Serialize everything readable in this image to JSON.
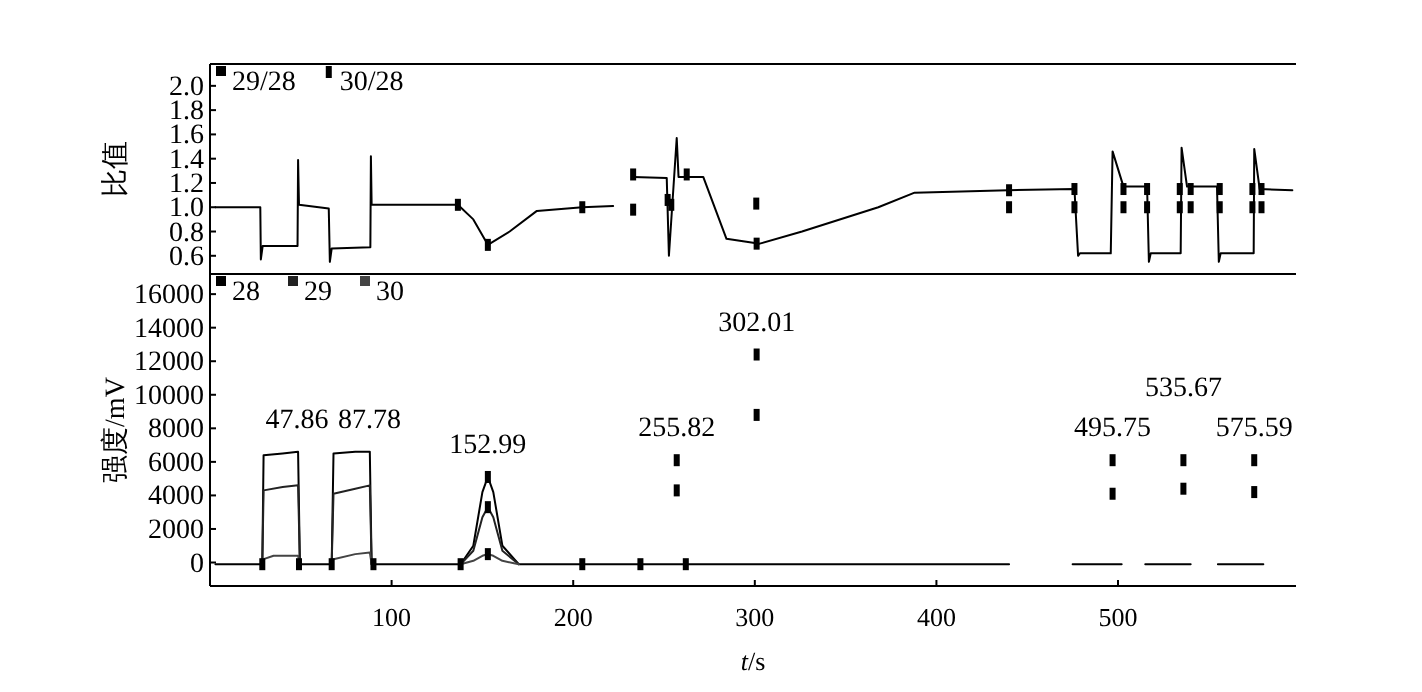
{
  "chart_data": [
    {
      "type": "line",
      "ylabel": "比值",
      "xlim": [
        0,
        598
      ],
      "ylim": [
        0.45,
        2.18
      ],
      "yticks": [
        {
          "value": 0.6,
          "label": "0.6"
        },
        {
          "value": 0.8,
          "label": "0.8"
        },
        {
          "value": 1.0,
          "label": "1.0"
        },
        {
          "value": 1.2,
          "label": "1.2"
        },
        {
          "value": 1.4,
          "label": "1.4"
        },
        {
          "value": 1.6,
          "label": "1.6"
        },
        {
          "value": 1.8,
          "label": "1.8"
        },
        {
          "value": 2.0,
          "label": "2.0"
        }
      ],
      "tick_labels": "y",
      "legend": "top left",
      "series": [
        {
          "name": "29/28",
          "color": "#000000",
          "x": [
            3,
            27.7,
            28,
            29,
            48.2,
            48.5,
            49,
            65.4,
            66,
            67,
            88.3,
            88.6,
            89,
            136.5,
            145,
            153,
            165,
            180,
            205,
            222,
            227,
            233,
            251.5,
            252.7,
            257,
            258,
            271.6,
            284.4,
            302.7,
            326,
            368,
            388,
            439.5,
            476,
            478,
            479,
            496,
            497,
            503,
            516,
            517,
            518,
            534.5,
            535,
            538,
            554.5,
            555.5,
            556.5,
            574.7,
            575,
            578,
            596
          ],
          "values": [
            1.0,
            1.0,
            0.57,
            0.68,
            0.68,
            1.39,
            1.02,
            0.99,
            0.55,
            0.66,
            0.67,
            1.42,
            1.02,
            1.02,
            0.9,
            0.69,
            0.8,
            0.97,
            1.0,
            1.01,
            null,
            1.25,
            1.24,
            0.6,
            1.57,
            1.25,
            1.25,
            0.74,
            0.7,
            0.8,
            1.0,
            1.12,
            1.14,
            1.15,
            0.6,
            0.62,
            0.62,
            1.46,
            1.17,
            1.17,
            0.55,
            0.62,
            0.62,
            1.49,
            1.17,
            1.17,
            0.55,
            0.62,
            0.62,
            1.48,
            1.15,
            1.14
          ]
        },
        {
          "name": "30/28",
          "type": "scatter",
          "marker": "square",
          "color": "#000000",
          "x": [
            136.5,
            153,
            205,
            233,
            233,
            252,
            254,
            262.5,
            300.8,
            301,
            440,
            440,
            476,
            476,
            503,
            503,
            516,
            516,
            534,
            534,
            540,
            540,
            556,
            556,
            574,
            574,
            579,
            579
          ],
          "values": [
            1.02,
            0.69,
            1.0,
            1.27,
            0.98,
            1.06,
            1.02,
            1.27,
            1.03,
            0.7,
            1.14,
            1.0,
            1.15,
            1.0,
            1.15,
            1.0,
            1.15,
            1.0,
            1.15,
            1.0,
            1.15,
            1.0,
            1.15,
            1.0,
            1.15,
            1.0,
            1.15,
            1.0
          ]
        }
      ]
    },
    {
      "type": "line",
      "xlabel": "t/s",
      "ylabel": "强度/mV",
      "xlim": [
        0,
        598
      ],
      "ylim": [
        -1400,
        17200
      ],
      "xticks": [
        100,
        200,
        300,
        400,
        500
      ],
      "yticks": [
        0,
        2000,
        4000,
        6000,
        8000,
        10000,
        12000,
        14000,
        16000
      ],
      "legend": "top left",
      "x": [
        3,
        28.8,
        29.5,
        40,
        48.5,
        49.5,
        67,
        68,
        80,
        88,
        89,
        138,
        145,
        150,
        153,
        156,
        161,
        170,
        440,
        458,
        475,
        502,
        508,
        515,
        540,
        548,
        555,
        580
      ],
      "series": [
        {
          "name": "28",
          "color": "#000000",
          "values": [
            -100,
            -100,
            6400,
            6500,
            6600,
            -100,
            -100,
            6500,
            6600,
            6600,
            -100,
            -100,
            1000,
            4200,
            5100,
            4200,
            1000,
            -100,
            -100,
            null,
            -100,
            -100,
            null,
            -100,
            -100,
            null,
            -100,
            -100
          ]
        },
        {
          "name": "29",
          "color": "#222222",
          "x": [
            28.8,
            29.5,
            40,
            48.5,
            49.5,
            58,
            67,
            68,
            80,
            88,
            89,
            120,
            138,
            145,
            150,
            153,
            156,
            161,
            170
          ],
          "values": [
            -100,
            4300,
            4500,
            4600,
            -100,
            null,
            -100,
            4100,
            4400,
            4600,
            -100,
            null,
            -100,
            700,
            2700,
            3300,
            2700,
            700,
            -100
          ]
        },
        {
          "name": "30",
          "color": "#444444",
          "x": [
            28.8,
            29.5,
            35,
            48.5,
            49.5,
            58,
            67,
            68,
            80,
            88,
            89,
            120,
            138,
            145,
            150,
            153,
            156,
            161,
            170
          ],
          "values": [
            -100,
            200,
            400,
            400,
            -100,
            null,
            -100,
            200,
            500,
            600,
            -100,
            null,
            -100,
            100,
            400,
            500,
            400,
            100,
            -100
          ]
        },
        {
          "type": "scatter",
          "marker": "square",
          "color": "#000000",
          "x": [
            28.8,
            49,
            67,
            90,
            138,
            153,
            153,
            153,
            205,
            237,
            262,
            257,
            257,
            301,
            301,
            497,
            497,
            536,
            536,
            575,
            575
          ],
          "values": [
            -100,
            -100,
            -100,
            -100,
            -100,
            5100,
            3300,
            500,
            -100,
            -100,
            -100,
            6100,
            4300,
            12400,
            8800,
            6100,
            4100,
            6100,
            4400,
            6100,
            4200
          ]
        }
      ],
      "annotations": [
        {
          "text": "47.86",
          "x": 47.86,
          "y": 6600
        },
        {
          "text": "87.78",
          "x": 87.78,
          "y": 6600
        },
        {
          "text": "152.99",
          "x": 152.99,
          "y": 5100
        },
        {
          "text": "255.82",
          "x": 257,
          "y": 6100
        },
        {
          "text": "302.01",
          "x": 301,
          "y": 12400
        },
        {
          "text": "495.75",
          "x": 497,
          "y": 6100
        },
        {
          "text": "535.67",
          "x": 536,
          "y": 6100
        },
        {
          "text": "575.59",
          "x": 575,
          "y": 6100
        }
      ]
    }
  ]
}
